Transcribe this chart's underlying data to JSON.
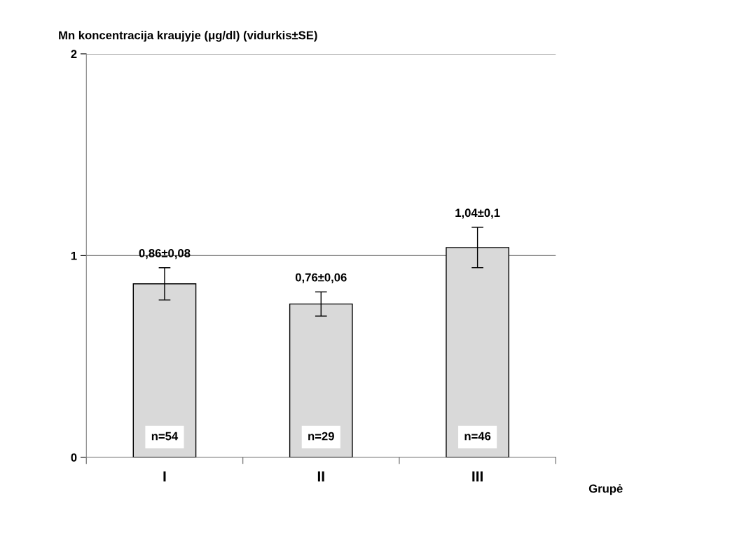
{
  "chart_data": {
    "type": "bar",
    "ylabel": "Mn koncentracija kraujyje (μg/dl) (vidurkis±SE)",
    "xlabel": "Grupė",
    "categories": [
      "I",
      "II",
      "III"
    ],
    "values": [
      0.86,
      0.76,
      1.04
    ],
    "errors": [
      0.08,
      0.06,
      0.1
    ],
    "value_labels": [
      "0,86±0,08",
      "0,76±0,06",
      "1,04±0,1"
    ],
    "color": "#d9d9d9",
    "ylim": [
      0,
      2
    ],
    "yticks": [
      0,
      1,
      2
    ],
    "grid": "y",
    "annotations": [
      "n=54",
      "n=29",
      "n=46"
    ]
  }
}
